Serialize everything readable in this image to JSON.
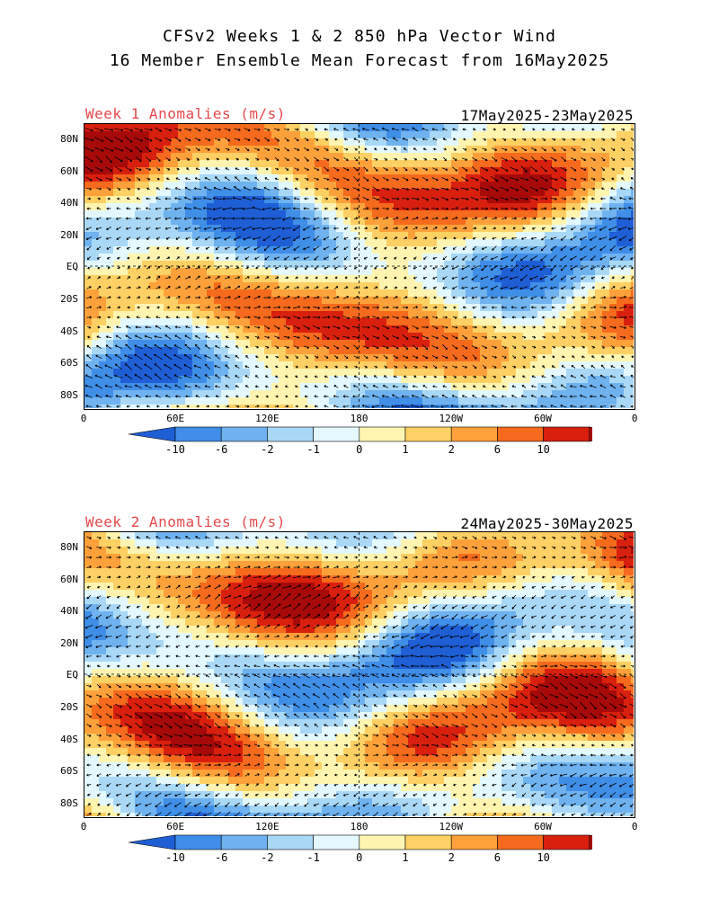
{
  "title_line1": "CFSv2 Weeks 1 & 2 850 hPa Vector Wind",
  "title_line2": "16 Member Ensemble Mean Forecast from 16May2025",
  "panels": [
    {
      "label": "Week 1 Anomalies (m/s)",
      "dates": "17May2025-23May2025"
    },
    {
      "label": "Week 2 Anomalies (m/s)",
      "dates": "24May2025-30May2025"
    }
  ],
  "lat_labels": [
    "80N",
    "60N",
    "40N",
    "20N",
    "EQ",
    "20S",
    "40S",
    "60S",
    "80S"
  ],
  "lon_labels": [
    "0",
    "60E",
    "120E",
    "180",
    "120W",
    "60W",
    "0"
  ],
  "colorbar": {
    "labels": [
      "-10",
      "-6",
      "-2",
      "-1",
      "0",
      "1",
      "2",
      "6",
      "10"
    ],
    "colors": [
      "#1f5fd6",
      "#3f8ee8",
      "#6fb2f0",
      "#a9d8f7",
      "#e3f8ff",
      "#fff5b0",
      "#ffd063",
      "#ffa13a",
      "#f56a1c",
      "#d9200f",
      "#a80a0a"
    ]
  }
}
